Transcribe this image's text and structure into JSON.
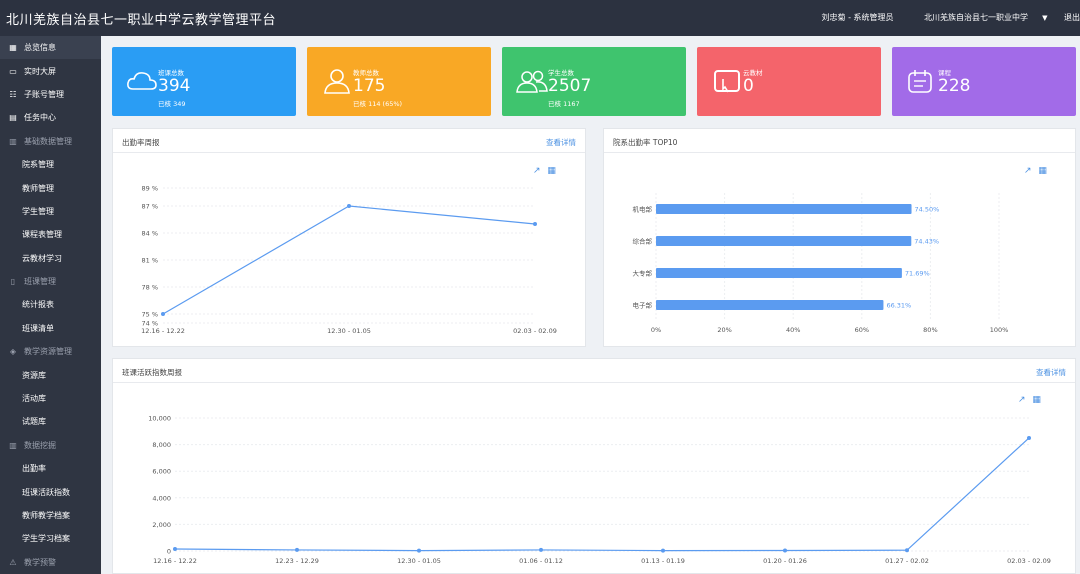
{
  "header": {
    "title": "北川羌族自治县七一职业中学云教学管理平台",
    "user": "刘忠菊 - 系统管理员",
    "school": "北川羌族自治县七一职业中学",
    "logout": "退出"
  },
  "sidebar": {
    "items": [
      {
        "label": "总览信息",
        "icon": "grid-icon",
        "kind": "top"
      },
      {
        "label": "实时大屏",
        "icon": "monitor-icon",
        "kind": "top"
      },
      {
        "label": "子账号管理",
        "icon": "tree-icon",
        "kind": "top"
      },
      {
        "label": "任务中心",
        "icon": "list-icon",
        "kind": "top"
      },
      {
        "label": "基础数据管理",
        "icon": "bar-chart-icon",
        "kind": "group"
      },
      {
        "label": "院系管理",
        "kind": "child"
      },
      {
        "label": "教师管理",
        "kind": "child"
      },
      {
        "label": "学生管理",
        "kind": "child"
      },
      {
        "label": "课程表管理",
        "kind": "child"
      },
      {
        "label": "云教材学习",
        "kind": "child"
      },
      {
        "label": "班课管理",
        "icon": "book-icon",
        "kind": "group"
      },
      {
        "label": "统计报表",
        "kind": "child"
      },
      {
        "label": "班课清单",
        "kind": "child"
      },
      {
        "label": "教学资源管理",
        "icon": "layers-icon",
        "kind": "group"
      },
      {
        "label": "资源库",
        "kind": "child"
      },
      {
        "label": "活动库",
        "kind": "child"
      },
      {
        "label": "试题库",
        "kind": "child"
      },
      {
        "label": "数据挖掘",
        "icon": "column-chart-icon",
        "kind": "group"
      },
      {
        "label": "出勤率",
        "kind": "child"
      },
      {
        "label": "班课活跃指数",
        "kind": "child"
      },
      {
        "label": "教师教学档案",
        "kind": "child"
      },
      {
        "label": "学生学习档案",
        "kind": "child"
      },
      {
        "label": "教学预警",
        "icon": "warning-icon",
        "kind": "group"
      }
    ]
  },
  "stats": [
    {
      "label": "班课总数",
      "value": "394",
      "sub": "已核 349",
      "color": "#2a9df4",
      "icon": "cloud-icon"
    },
    {
      "label": "教师总数",
      "value": "175",
      "sub": "已核 114 (65%)",
      "color": "#f9a825",
      "icon": "teacher-icon"
    },
    {
      "label": "学生总数",
      "value": "2507",
      "sub": "已核 1167",
      "color": "#3fc46e",
      "icon": "students-icon"
    },
    {
      "label": "云教材",
      "value": "0",
      "sub": "",
      "color": "#f4646b",
      "icon": "tablet-icon"
    },
    {
      "label": "课程",
      "value": "228",
      "sub": "",
      "color": "#a26be8",
      "icon": "calendar-icon"
    }
  ],
  "panels": {
    "attendance": {
      "title": "出勤率周报",
      "link": "查看详情"
    },
    "top10": {
      "title": "院系出勤率 TOP10"
    },
    "activity": {
      "title": "班课活跃指数周报",
      "link": "查看详情"
    }
  },
  "chart_data": [
    {
      "type": "line",
      "x": [
        "12.16 - 12.22",
        "12.30 - 01.05",
        "02.03 - 02.09"
      ],
      "values": [
        75.0,
        87.0,
        85.0
      ],
      "y_ticks": [
        "74 %",
        "75 %",
        "78 %",
        "81 %",
        "84 %",
        "87 %",
        "89 %"
      ],
      "ylim": [
        74,
        89
      ],
      "grid": true
    },
    {
      "type": "bar",
      "orientation": "horizontal",
      "categories": [
        "机电部",
        "综合部",
        "大专部",
        "电子部"
      ],
      "values": [
        74.5,
        74.43,
        71.69,
        66.31
      ],
      "labels": [
        "74.50%",
        "74.43%",
        "71.69%",
        "66.31%"
      ],
      "x_ticks": [
        "0%",
        "20%",
        "40%",
        "60%",
        "80%",
        "100%"
      ],
      "xlim": [
        0,
        100
      ],
      "color": "#5b9bf0"
    },
    {
      "type": "line",
      "x": [
        "12.16 - 12.22",
        "12.23 - 12.29",
        "12.30 - 01.05",
        "01.06 - 01.12",
        "01.13 - 01.19",
        "01.20 - 01.26",
        "01.27 - 02.02",
        "02.03 - 02.09"
      ],
      "values": [
        150,
        80,
        30,
        80,
        30,
        40,
        60,
        8500
      ],
      "y_ticks": [
        "0",
        "2,000",
        "4,000",
        "6,000",
        "8,000",
        "10,000"
      ],
      "ylim": [
        0,
        10000
      ],
      "grid": true
    }
  ]
}
